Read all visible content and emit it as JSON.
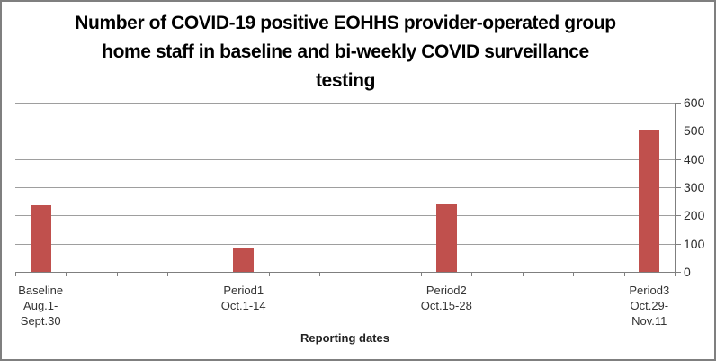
{
  "title": {
    "lines": [
      "Number of COVID-19 positive EOHHS provider-operated group",
      "home staff in baseline and bi-weekly COVID surveillance",
      "testing"
    ]
  },
  "chart_data": {
    "type": "bar",
    "title": "Number of COVID-19 positive EOHHS provider-operated group home staff in baseline and bi-weekly COVID surveillance testing",
    "categories": [
      "Baseline Aug.1-Sept.30",
      "Period1 Oct.1-14",
      "Period2 Oct.15-28",
      "Period3 Oct.29-Nov.11"
    ],
    "category_label_lines": [
      [
        "Baseline",
        "Aug.1-",
        "Sept.30"
      ],
      [
        "Period1",
        "Oct.1-14"
      ],
      [
        "Period2",
        "Oct.15-28"
      ],
      [
        "Period3",
        "Oct.29-",
        "Nov.11"
      ]
    ],
    "values": [
      235,
      85,
      240,
      505
    ],
    "xlabel": "Reporting dates",
    "ylabel": "",
    "ylim": [
      0,
      600
    ],
    "yticks": [
      0,
      100,
      200,
      300,
      400,
      500,
      600
    ],
    "y_axis_side": "right",
    "grid": true,
    "legend": "none",
    "bar_color": "#C0504D",
    "gridline_color": "#9E9E9E",
    "axis_color": "#7F7F7F",
    "text_color": "#333333",
    "border_color": "#7F7F7F"
  }
}
